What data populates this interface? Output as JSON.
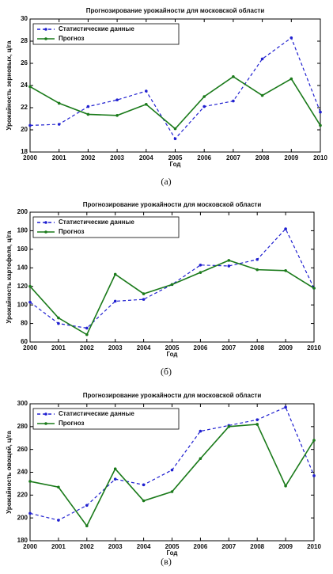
{
  "chart_data": [
    {
      "type": "line",
      "title": "Прогнозирование урожайности для московской области",
      "ylabel": "Урожайность зерновых, ц/га",
      "xlabel": "Год",
      "caption": "(а)",
      "x": [
        2000,
        2001,
        2002,
        2003,
        2004,
        2005,
        2006,
        2007,
        2008,
        2009,
        2010
      ],
      "xlim": [
        2000,
        2010
      ],
      "xticks": [
        2000,
        2001,
        2002,
        2003,
        2004,
        2005,
        2006,
        2007,
        2008,
        2009,
        2010
      ],
      "ylim": [
        18,
        30
      ],
      "yticks": [
        18,
        20,
        22,
        24,
        26,
        28,
        30
      ],
      "legend": "upper left",
      "series": [
        {
          "name": "Статистические данные",
          "color": "#1f1fd0",
          "linestyle": "dashed",
          "values": [
            20.4,
            20.5,
            22.1,
            22.7,
            23.5,
            19.2,
            22.1,
            22.6,
            26.4,
            28.3,
            21.6
          ]
        },
        {
          "name": "Прогноз",
          "color": "#1a7a1a",
          "linestyle": "solid",
          "values": [
            23.9,
            22.4,
            21.4,
            21.3,
            22.3,
            20.1,
            23.0,
            24.8,
            23.1,
            24.6,
            20.4
          ]
        }
      ]
    },
    {
      "type": "line",
      "title": "Прогнозирование урожайности для московской области",
      "ylabel": "Урожайность картофеля, ц/га",
      "xlabel": "Год",
      "caption": "(б)",
      "x": [
        2000,
        2001,
        2002,
        2003,
        2004,
        2005,
        2006,
        2007,
        2008,
        2009,
        2010
      ],
      "xlim": [
        2000,
        2010
      ],
      "xticks": [
        2000,
        2001,
        2002,
        2003,
        2004,
        2005,
        2006,
        2007,
        2008,
        2009,
        2010
      ],
      "ylim": [
        60,
        200
      ],
      "yticks": [
        60,
        80,
        100,
        120,
        140,
        160,
        180,
        200
      ],
      "legend": "upper left",
      "series": [
        {
          "name": "Статистические данные",
          "color": "#1f1fd0",
          "linestyle": "dashed",
          "values": [
            103,
            80,
            75,
            104,
            106,
            122,
            143,
            142,
            149,
            182,
            118
          ]
        },
        {
          "name": "Прогноз",
          "color": "#1a7a1a",
          "linestyle": "solid",
          "values": [
            120,
            86,
            68,
            133,
            112,
            122,
            135,
            148,
            138,
            137,
            118
          ]
        }
      ]
    },
    {
      "type": "line",
      "title": "Прогнозирование урожайности для московской области",
      "ylabel": "Урожайность овощей, ц/га",
      "xlabel": "Год",
      "caption": "(в)",
      "x": [
        2000,
        2001,
        2002,
        2003,
        2004,
        2005,
        2006,
        2007,
        2008,
        2009,
        2010
      ],
      "xlim": [
        2000,
        2010
      ],
      "xticks": [
        2000,
        2001,
        2002,
        2003,
        2004,
        2005,
        2006,
        2007,
        2008,
        2009,
        2010
      ],
      "ylim": [
        180,
        300
      ],
      "yticks": [
        180,
        200,
        220,
        240,
        260,
        280,
        300
      ],
      "legend": "upper left",
      "series": [
        {
          "name": "Статистические данные",
          "color": "#1f1fd0",
          "linestyle": "dashed",
          "values": [
            204,
            198,
            211,
            234,
            229,
            242,
            276,
            281,
            286,
            297,
            237
          ]
        },
        {
          "name": "Прогноз",
          "color": "#1a7a1a",
          "linestyle": "solid",
          "values": [
            232,
            227,
            193,
            243,
            215,
            223,
            252,
            280,
            282,
            228,
            268
          ]
        }
      ]
    }
  ]
}
